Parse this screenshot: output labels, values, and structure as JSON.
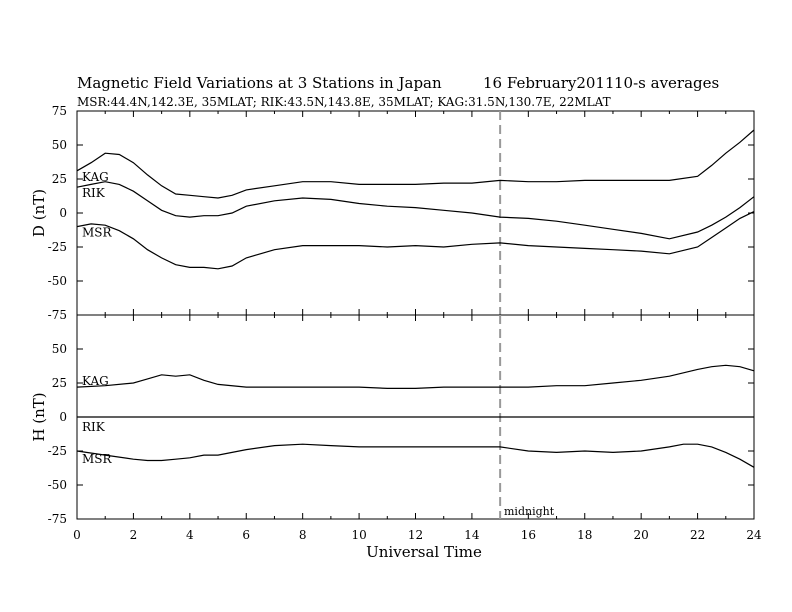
{
  "title": "Magnetic Field Variations at 3 Stations in Japan",
  "date_label": "16  February2011",
  "averages_label": "10-s averages",
  "stations_line": "MSR:44.4N,142.3E, 35MLAT;  RIK:43.5N,143.8E, 35MLAT;  KAG:31.5N,130.7E, 22MLAT",
  "xlabel": "Universal Time",
  "midnight_label": "midnight",
  "chart_data": [
    {
      "type": "line",
      "panel": "D",
      "ylabel": "D (nT)",
      "ylim": [
        -75,
        75
      ],
      "yticks": [
        -75,
        -50,
        -25,
        0,
        25,
        50,
        75
      ],
      "xlim": [
        0,
        24
      ],
      "xticks": [
        0,
        2,
        4,
        6,
        8,
        10,
        12,
        14,
        16,
        18,
        20,
        22,
        24
      ],
      "vline_x": 15,
      "series": [
        {
          "name": "KAG",
          "x": [
            0,
            0.5,
            1,
            1.5,
            2,
            2.5,
            3,
            3.5,
            4,
            4.5,
            5,
            5.5,
            6,
            7,
            8,
            9,
            10,
            11,
            12,
            13,
            14,
            15,
            16,
            17,
            18,
            19,
            20,
            21,
            22,
            22.5,
            23,
            23.5,
            24
          ],
          "y": [
            31,
            37,
            44,
            43,
            37,
            28,
            20,
            14,
            13,
            12,
            11,
            13,
            17,
            20,
            23,
            23,
            21,
            21,
            21,
            22,
            22,
            24,
            23,
            23,
            24,
            24,
            24,
            24,
            27,
            35,
            44,
            52,
            61
          ]
        },
        {
          "name": "RIK",
          "x": [
            0,
            0.5,
            1,
            1.5,
            2,
            2.5,
            3,
            3.5,
            4,
            4.5,
            5,
            5.5,
            6,
            7,
            8,
            9,
            10,
            11,
            12,
            13,
            14,
            15,
            16,
            17,
            18,
            19,
            20,
            21,
            22,
            22.5,
            23,
            23.5,
            24
          ],
          "y": [
            19,
            21,
            23,
            21,
            16,
            9,
            2,
            -2,
            -3,
            -2,
            -2,
            0,
            5,
            9,
            11,
            10,
            7,
            5,
            4,
            2,
            0,
            -3,
            -4,
            -6,
            -9,
            -12,
            -15,
            -19,
            -14,
            -9,
            -3,
            4,
            12
          ]
        },
        {
          "name": "MSR",
          "x": [
            0,
            0.5,
            1,
            1.5,
            2,
            2.5,
            3,
            3.5,
            4,
            4.5,
            5,
            5.5,
            6,
            7,
            8,
            9,
            10,
            11,
            12,
            13,
            14,
            15,
            16,
            17,
            18,
            19,
            20,
            21,
            22,
            22.5,
            23,
            23.5,
            24
          ],
          "y": [
            -10,
            -8,
            -9,
            -13,
            -19,
            -27,
            -33,
            -38,
            -40,
            -40,
            -41,
            -39,
            -33,
            -27,
            -24,
            -24,
            -24,
            -25,
            -24,
            -25,
            -23,
            -22,
            -24,
            -25,
            -26,
            -27,
            -28,
            -30,
            -25,
            -18,
            -11,
            -4,
            1
          ]
        }
      ],
      "series_labels": [
        "KAG",
        "RIK",
        "MSR"
      ]
    },
    {
      "type": "line",
      "panel": "H",
      "ylabel": "H (nT)",
      "ylim": [
        -75,
        75
      ],
      "yticks": [
        -75,
        -50,
        -25,
        0,
        25,
        50
      ],
      "xlim": [
        0,
        24
      ],
      "xticks": [
        0,
        2,
        4,
        6,
        8,
        10,
        12,
        14,
        16,
        18,
        20,
        22,
        24
      ],
      "vline_x": 15,
      "series": [
        {
          "name": "KAG",
          "x": [
            0,
            1,
            2,
            2.5,
            3,
            3.5,
            4,
            4.5,
            5,
            6,
            7,
            8,
            9,
            10,
            11,
            12,
            13,
            14,
            15,
            16,
            17,
            18,
            19,
            20,
            21,
            22,
            22.5,
            23,
            23.5,
            24
          ],
          "y": [
            22,
            23,
            25,
            28,
            31,
            30,
            31,
            27,
            24,
            22,
            22,
            22,
            22,
            22,
            21,
            21,
            22,
            22,
            22,
            22,
            23,
            23,
            25,
            27,
            30,
            35,
            37,
            38,
            37,
            34
          ]
        },
        {
          "name": "RIK",
          "x": [
            0,
            24
          ],
          "y": [
            0,
            0
          ]
        },
        {
          "name": "MSR",
          "x": [
            0,
            1,
            2,
            2.5,
            3,
            3.5,
            4,
            4.5,
            5,
            6,
            7,
            8,
            9,
            10,
            11,
            12,
            13,
            14,
            15,
            16,
            17,
            18,
            19,
            20,
            21,
            21.5,
            22,
            22.5,
            23,
            23.5,
            24
          ],
          "y": [
            -25,
            -28,
            -31,
            -32,
            -32,
            -31,
            -30,
            -28,
            -28,
            -24,
            -21,
            -20,
            -21,
            -22,
            -22,
            -22,
            -22,
            -22,
            -22,
            -25,
            -26,
            -25,
            -26,
            -25,
            -22,
            -20,
            -20,
            -22,
            -26,
            -31,
            -37
          ]
        }
      ],
      "series_labels": [
        "KAG",
        "RIK",
        "MSR"
      ]
    }
  ]
}
